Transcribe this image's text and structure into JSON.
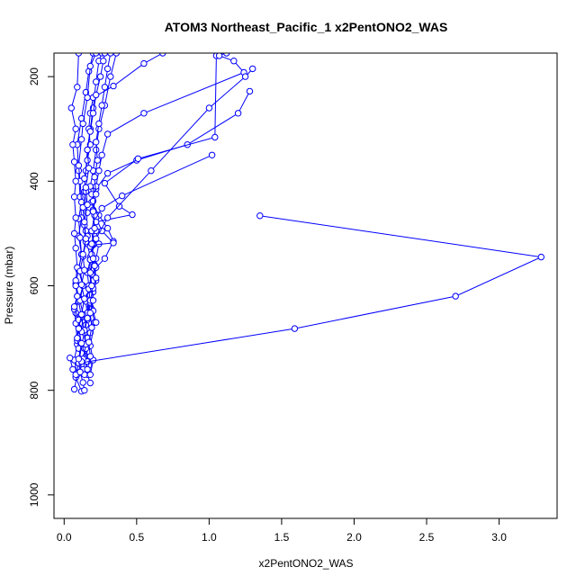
{
  "chart_data": {
    "type": "line",
    "title": "ATOM3 Northeast_Pacific_1 x2PentONO2_WAS",
    "xlabel": "x2PentONO2_WAS",
    "ylabel": "Pressure (mbar)",
    "xlim": [
      -0.07,
      3.4
    ],
    "ylim": [
      1045,
      155
    ],
    "y_reversed": true,
    "x_ticks": [
      "0.0",
      "0.5",
      "1.0",
      "1.5",
      "2.0",
      "2.5",
      "3.0"
    ],
    "x_tick_values": [
      0,
      0.5,
      1.0,
      1.5,
      2.0,
      2.5,
      3.0
    ],
    "y_ticks": [
      "200",
      "400",
      "600",
      "800",
      "1000"
    ],
    "y_tick_values": [
      200,
      400,
      600,
      800,
      1000
    ],
    "grid": false,
    "color": "#0000ff",
    "marker": "open-circle",
    "series": [
      {
        "values": [
          [
            0.12,
            802
          ],
          [
            0.08,
            775
          ],
          [
            0.1,
            748
          ],
          [
            0.12,
            716
          ],
          [
            0.14,
            688
          ],
          [
            0.12,
            660
          ],
          [
            0.1,
            630
          ],
          [
            0.13,
            600
          ],
          [
            0.1,
            570
          ],
          [
            0.12,
            540
          ],
          [
            0.1,
            505
          ],
          [
            0.12,
            470
          ],
          [
            0.11,
            430
          ],
          [
            0.1,
            380
          ],
          [
            0.09,
            330
          ],
          [
            0.12,
            280
          ],
          [
            0.15,
            230
          ],
          [
            0.17,
            190
          ],
          [
            0.2,
            155
          ]
        ]
      },
      {
        "values": [
          [
            0.07,
            798
          ],
          [
            0.09,
            770
          ],
          [
            0.07,
            742
          ],
          [
            0.09,
            712
          ],
          [
            0.1,
            680
          ],
          [
            0.08,
            652
          ],
          [
            0.1,
            622
          ],
          [
            0.08,
            596
          ],
          [
            0.1,
            568
          ],
          [
            0.12,
            540
          ],
          [
            0.11,
            508
          ],
          [
            0.1,
            472
          ],
          [
            0.12,
            440
          ],
          [
            0.11,
            400
          ],
          [
            0.1,
            370
          ],
          [
            0.12,
            320
          ],
          [
            0.13,
            290
          ],
          [
            0.16,
            240
          ],
          [
            0.18,
            180
          ],
          [
            0.22,
            155
          ]
        ]
      },
      {
        "values": [
          [
            0.18,
            786
          ],
          [
            0.16,
            770
          ],
          [
            0.17,
            752
          ],
          [
            0.15,
            735
          ],
          [
            0.17,
            715
          ],
          [
            0.18,
            690
          ],
          [
            0.16,
            665
          ],
          [
            0.18,
            640
          ],
          [
            0.17,
            620
          ],
          [
            0.19,
            598
          ],
          [
            0.17,
            572
          ],
          [
            0.18,
            545
          ],
          [
            0.16,
            520
          ],
          [
            0.15,
            495
          ],
          [
            0.16,
            460
          ],
          [
            0.14,
            420
          ],
          [
            0.15,
            380
          ],
          [
            0.16,
            340
          ],
          [
            0.18,
            300
          ],
          [
            0.2,
            260
          ],
          [
            0.22,
            210
          ],
          [
            0.24,
            170
          ],
          [
            0.26,
            155
          ]
        ]
      },
      {
        "values": [
          [
            0.18,
            770
          ],
          [
            0.2,
            742
          ],
          [
            0.18,
            715
          ],
          [
            0.21,
            670
          ],
          [
            0.19,
            645
          ],
          [
            0.2,
            612
          ],
          [
            0.22,
            590
          ],
          [
            0.2,
            570
          ],
          [
            0.22,
            548
          ],
          [
            0.24,
            520
          ],
          [
            0.22,
            495
          ],
          [
            0.2,
            455
          ],
          [
            0.19,
            425
          ],
          [
            0.18,
            410
          ],
          [
            0.2,
            380
          ],
          [
            0.22,
            340
          ],
          [
            0.24,
            300
          ],
          [
            0.28,
            255
          ],
          [
            0.32,
            200
          ],
          [
            0.36,
            155
          ]
        ]
      },
      {
        "values": [
          [
            0.04,
            738
          ],
          [
            0.06,
            760
          ],
          [
            0.08,
            770
          ]
        ]
      },
      {
        "values": [
          [
            0.13,
            760
          ],
          [
            0.15,
            740
          ],
          [
            0.14,
            720
          ],
          [
            0.16,
            700
          ],
          [
            0.15,
            675
          ],
          [
            0.17,
            650
          ],
          [
            0.16,
            625
          ],
          [
            0.18,
            605
          ],
          [
            0.2,
            595
          ],
          [
            0.22,
            565
          ],
          [
            0.28,
            548
          ],
          [
            0.34,
            515
          ],
          [
            0.3,
            490
          ],
          [
            0.24,
            465
          ],
          [
            0.19,
            440
          ],
          [
            0.22,
            415
          ],
          [
            0.3,
            385
          ],
          [
            0.5,
            360
          ],
          [
            0.85,
            330
          ],
          [
            1.2,
            270
          ],
          [
            1.28,
            228
          ]
        ]
      },
      {
        "values": [
          [
            0.14,
            770
          ],
          [
            0.16,
            745
          ],
          [
            0.15,
            720
          ],
          [
            0.14,
            690
          ],
          [
            0.16,
            660
          ],
          [
            0.15,
            630
          ],
          [
            0.17,
            600
          ],
          [
            0.16,
            575
          ],
          [
            0.18,
            550
          ],
          [
            0.2,
            522
          ],
          [
            0.34,
            518
          ],
          [
            0.26,
            495
          ],
          [
            0.22,
            470
          ],
          [
            0.26,
            452
          ],
          [
            0.4,
            428
          ],
          [
            1.02,
            350
          ]
        ]
      },
      {
        "values": [
          [
            0.1,
            748
          ],
          [
            1.59,
            682
          ],
          [
            2.7,
            620
          ],
          [
            3.29,
            545
          ],
          [
            1.35,
            466
          ]
        ]
      },
      {
        "values": [
          [
            0.13,
            740
          ],
          [
            0.15,
            712
          ],
          [
            0.14,
            685
          ],
          [
            0.16,
            652
          ],
          [
            0.18,
            618
          ],
          [
            0.2,
            590
          ],
          [
            0.21,
            560
          ],
          [
            0.18,
            525
          ],
          [
            0.16,
            505
          ],
          [
            0.22,
            478
          ],
          [
            0.47,
            464
          ],
          [
            0.38,
            448
          ],
          [
            0.28,
            404
          ],
          [
            0.51,
            357
          ],
          [
            1.04,
            316
          ],
          [
            1.05,
            160
          ],
          [
            1.12,
            155
          ]
        ]
      },
      {
        "values": [
          [
            0.09,
            705
          ],
          [
            0.08,
            672
          ],
          [
            0.07,
            645
          ],
          [
            0.09,
            620
          ],
          [
            0.08,
            590
          ],
          [
            0.09,
            565
          ],
          [
            0.08,
            528
          ],
          [
            0.07,
            500
          ],
          [
            0.08,
            470
          ],
          [
            0.07,
            430
          ],
          [
            0.08,
            400
          ],
          [
            0.07,
            363
          ],
          [
            0.06,
            330
          ],
          [
            0.08,
            300
          ],
          [
            0.05,
            260
          ],
          [
            0.09,
            220
          ],
          [
            0.1,
            155
          ]
        ]
      },
      {
        "values": [
          [
            0.12,
            688
          ],
          [
            0.13,
            655
          ],
          [
            0.11,
            628
          ],
          [
            0.13,
            600
          ],
          [
            0.11,
            572
          ],
          [
            0.13,
            544
          ],
          [
            0.15,
            516
          ],
          [
            0.14,
            484
          ],
          [
            0.13,
            450
          ],
          [
            0.15,
            420
          ],
          [
            0.14,
            395
          ],
          [
            0.16,
            360
          ],
          [
            0.18,
            330
          ],
          [
            0.17,
            300
          ],
          [
            0.18,
            270
          ],
          [
            0.2,
            240
          ],
          [
            0.34,
            218
          ],
          [
            0.55,
            175
          ],
          [
            0.68,
            155
          ]
        ]
      },
      {
        "values": [
          [
            0.16,
            662
          ],
          [
            0.18,
            632
          ],
          [
            0.17,
            606
          ],
          [
            0.19,
            578
          ],
          [
            0.18,
            550
          ],
          [
            0.2,
            520
          ],
          [
            0.19,
            495
          ],
          [
            0.21,
            465
          ],
          [
            0.2,
            438
          ],
          [
            0.22,
            410
          ],
          [
            0.24,
            380
          ],
          [
            0.26,
            350
          ],
          [
            0.3,
            310
          ],
          [
            0.55,
            270
          ],
          [
            1.24,
            192
          ],
          [
            1.17,
            170
          ],
          [
            1.07,
            160
          ]
        ]
      },
      {
        "values": [
          [
            0.22,
            670
          ],
          [
            0.2,
            648
          ],
          [
            0.18,
            628
          ],
          [
            0.2,
            605
          ],
          [
            0.22,
            585
          ],
          [
            0.21,
            562
          ],
          [
            0.19,
            540
          ],
          [
            0.22,
            510
          ],
          [
            0.3,
            470
          ],
          [
            0.6,
            380
          ],
          [
            1.0,
            260
          ],
          [
            1.25,
            200
          ],
          [
            1.3,
            185
          ]
        ]
      },
      {
        "values": [
          [
            0.08,
            600
          ],
          [
            0.09,
            620
          ],
          [
            0.07,
            640
          ],
          [
            0.1,
            665
          ],
          [
            0.09,
            700
          ],
          [
            0.1,
            720
          ],
          [
            0.12,
            745
          ],
          [
            0.11,
            765
          ],
          [
            0.13,
            785
          ],
          [
            0.14,
            800
          ]
        ]
      },
      {
        "values": [
          [
            0.11,
            765
          ],
          [
            0.1,
            740
          ],
          [
            0.12,
            710
          ],
          [
            0.1,
            682
          ],
          [
            0.12,
            655
          ],
          [
            0.14,
            625
          ],
          [
            0.12,
            598
          ],
          [
            0.14,
            570
          ],
          [
            0.13,
            540
          ],
          [
            0.15,
            510
          ],
          [
            0.14,
            478
          ],
          [
            0.16,
            445
          ],
          [
            0.15,
            412
          ],
          [
            0.17,
            375
          ],
          [
            0.16,
            340
          ],
          [
            0.18,
            305
          ],
          [
            0.2,
            270
          ],
          [
            0.22,
            235
          ],
          [
            0.25,
            200
          ],
          [
            0.27,
            170
          ],
          [
            0.28,
            155
          ]
        ]
      },
      {
        "values": [
          [
            0.16,
            760
          ],
          [
            0.18,
            735
          ],
          [
            0.17,
            708
          ],
          [
            0.19,
            680
          ],
          [
            0.18,
            652
          ],
          [
            0.2,
            628
          ],
          [
            0.19,
            600
          ],
          [
            0.18,
            575
          ],
          [
            0.2,
            548
          ],
          [
            0.19,
            520
          ],
          [
            0.21,
            490
          ],
          [
            0.2,
            458
          ],
          [
            0.22,
            425
          ],
          [
            0.21,
            392
          ],
          [
            0.23,
            360
          ],
          [
            0.22,
            325
          ],
          [
            0.24,
            290
          ],
          [
            0.26,
            255
          ],
          [
            0.28,
            220
          ],
          [
            0.3,
            185
          ],
          [
            0.32,
            155
          ]
        ]
      }
    ]
  }
}
